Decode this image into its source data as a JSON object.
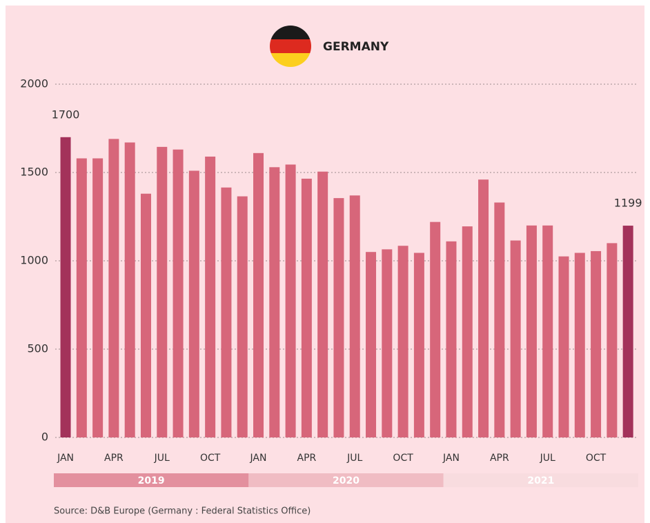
{
  "chart_data": {
    "type": "bar",
    "title": "GERMANY",
    "categories": [
      "JAN",
      null,
      null,
      "APR",
      null,
      null,
      "JUL",
      null,
      null,
      "OCT",
      null,
      null,
      "JAN",
      null,
      null,
      "APR",
      null,
      null,
      "JUL",
      null,
      null,
      "OCT",
      null,
      null,
      "JAN",
      null,
      null,
      "APR",
      null,
      null,
      "JUL",
      null,
      null,
      "OCT",
      null,
      null
    ],
    "values": [
      1700,
      1580,
      1580,
      1690,
      1670,
      1380,
      1645,
      1630,
      1510,
      1590,
      1415,
      1365,
      1610,
      1530,
      1545,
      1465,
      1505,
      1355,
      1370,
      1050,
      1065,
      1085,
      1045,
      1220,
      1110,
      1195,
      1460,
      1330,
      1115,
      1200,
      1200,
      1025,
      1045,
      1055,
      1100,
      1199
    ],
    "value_labels": [
      "1700",
      null,
      null,
      null,
      null,
      null,
      null,
      null,
      null,
      null,
      null,
      null,
      null,
      null,
      null,
      null,
      null,
      null,
      null,
      null,
      null,
      null,
      null,
      null,
      null,
      null,
      null,
      null,
      null,
      null,
      null,
      null,
      null,
      null,
      null,
      "1199"
    ],
    "color": "#d7667a",
    "highlight_color": "#a3325a",
    "ylim": [
      0,
      2000
    ],
    "yticks": [
      0,
      500,
      1000,
      1500,
      2000
    ],
    "grid": true,
    "year_bands": [
      {
        "label": "2019",
        "color": "#e3909e"
      },
      {
        "label": "2020",
        "color": "#f0bcc3"
      },
      {
        "label": "2021",
        "color": "#f8dcdf"
      }
    ],
    "source": "Source: D&B Europe (Germany : Federal Statistics Office)"
  }
}
